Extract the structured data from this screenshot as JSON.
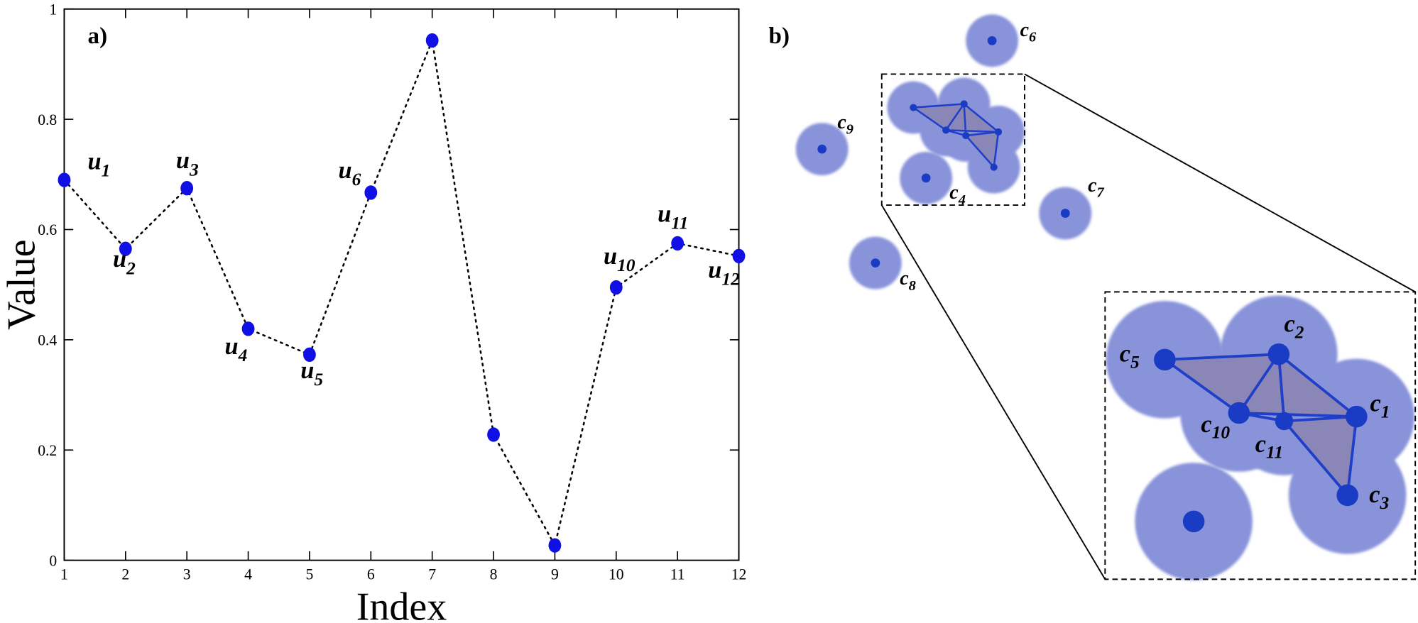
{
  "chart_data": {
    "type": "line",
    "panel_label": "a)",
    "xlabel": "Index",
    "ylabel": "Value",
    "x": [
      1,
      2,
      3,
      4,
      5,
      6,
      7,
      8,
      9,
      10,
      11,
      12
    ],
    "values": [
      0.69,
      0.565,
      0.675,
      0.42,
      0.373,
      0.667,
      0.943,
      0.228,
      0.027,
      0.495,
      0.575,
      0.552
    ],
    "point_labels": [
      {
        "main": "u",
        "sub": "1"
      },
      {
        "main": "u",
        "sub": "2"
      },
      {
        "main": "u",
        "sub": "3"
      },
      {
        "main": "u",
        "sub": "4"
      },
      {
        "main": "u",
        "sub": "5"
      },
      {
        "main": "u",
        "sub": "6"
      },
      null,
      null,
      null,
      {
        "main": "u",
        "sub": "10"
      },
      {
        "main": "u",
        "sub": "11"
      },
      {
        "main": "u",
        "sub": "12"
      }
    ],
    "color": "#1010e6",
    "xlim": [
      1,
      12
    ],
    "xticks": [
      1,
      2,
      3,
      4,
      5,
      6,
      7,
      8,
      9,
      10,
      11,
      12
    ],
    "ylim": [
      0,
      1
    ],
    "yticks": [
      0,
      0.2,
      0.4,
      0.6,
      0.8,
      1
    ]
  },
  "diagram": {
    "panel_label": "b)",
    "nodes": [
      {
        "main": "c",
        "sub": "1"
      },
      {
        "main": "c",
        "sub": "2"
      },
      {
        "main": "c",
        "sub": "3"
      },
      {
        "main": "c",
        "sub": "4"
      },
      {
        "main": "c",
        "sub": "5"
      },
      {
        "main": "c",
        "sub": "6"
      },
      {
        "main": "c",
        "sub": "7"
      },
      {
        "main": "c",
        "sub": "8"
      },
      {
        "main": "c",
        "sub": "9"
      },
      {
        "main": "c",
        "sub": "10"
      },
      {
        "main": "c",
        "sub": "11"
      }
    ]
  }
}
